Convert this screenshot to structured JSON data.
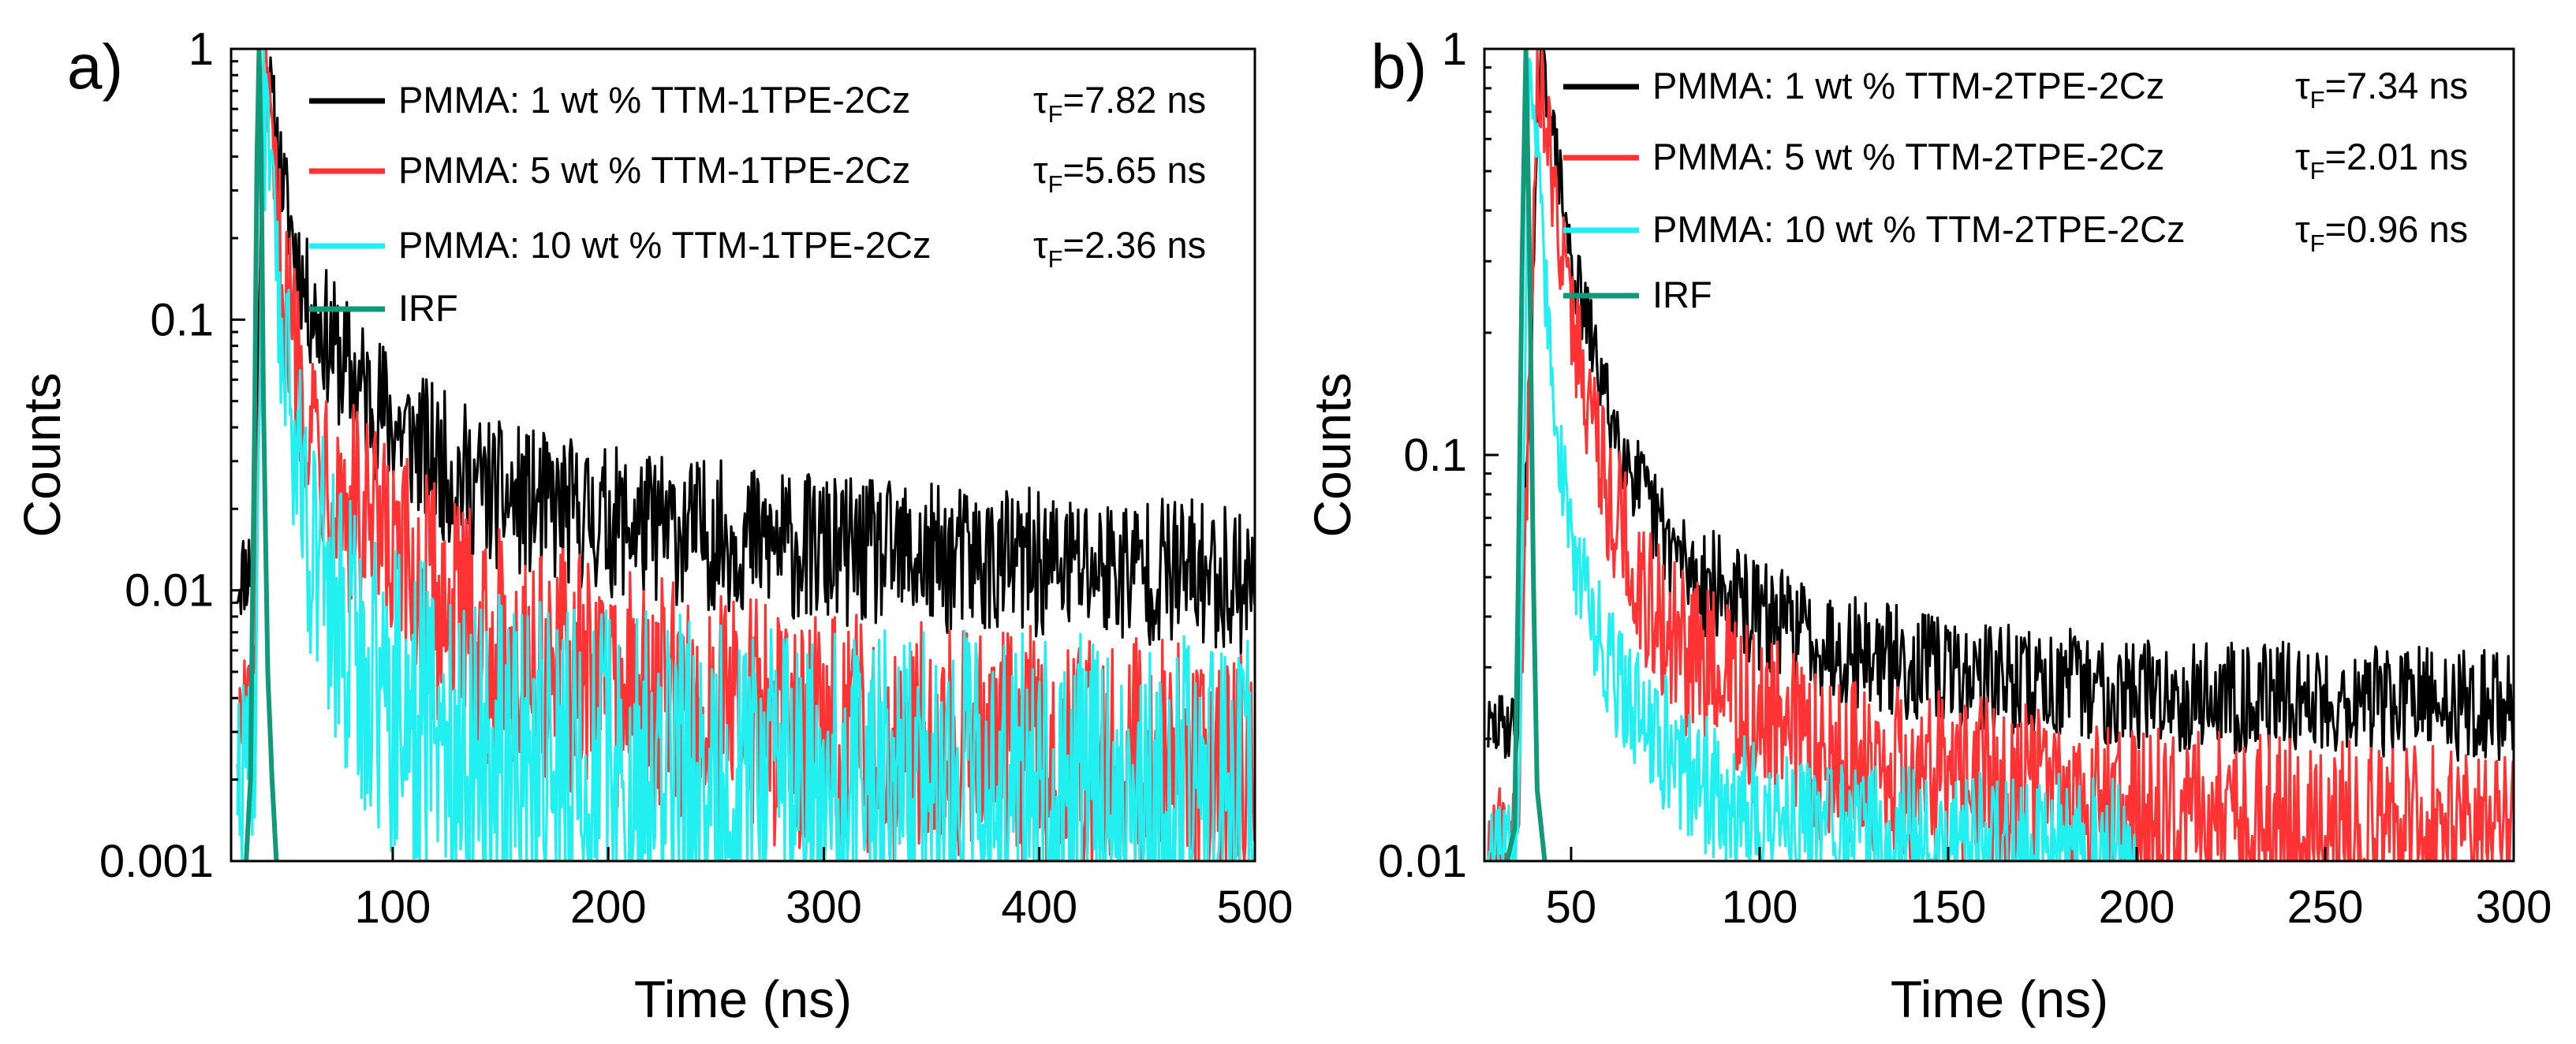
{
  "figure": {
    "panels": [
      {
        "label": "a)",
        "xlabel": "Time (ns)",
        "ylabel": "Counts",
        "xlim": [
          25,
          500
        ],
        "ylim": [
          0.001,
          1
        ],
        "yscale": "log",
        "x_ticks": [
          100,
          200,
          300,
          400,
          500
        ],
        "x_tick_labels": [
          "100",
          "200",
          "300",
          "400",
          "500"
        ],
        "y_ticks": [
          0.001,
          0.01,
          0.1,
          1
        ],
        "y_tick_labels": [
          "0.001",
          "0.01",
          "0.1",
          "1"
        ],
        "legend": [
          {
            "text": "PMMA: 1 wt % TTM-1TPE-2Cz",
            "tau_symbol": "τ",
            "tau_sub": "F",
            "tau_value": "=7.82 ns",
            "color": "#000000"
          },
          {
            "text": "PMMA: 5 wt % TTM-1TPE-2Cz",
            "tau_symbol": "τ",
            "tau_sub": "F",
            "tau_value": "=5.65 ns",
            "color": "#ff3333"
          },
          {
            "text": "PMMA: 10 wt % TTM-1TPE-2Cz",
            "tau_symbol": "τ",
            "tau_sub": "F",
            "tau_value": "=2.36 ns",
            "color": "#22f0f0"
          },
          {
            "text": "IRF",
            "tau_symbol": "",
            "tau_sub": "",
            "tau_value": "",
            "color": "#11997a"
          }
        ]
      },
      {
        "label": "b)",
        "xlabel": "Time (ns)",
        "ylabel": "Counts",
        "xlim": [
          27,
          300
        ],
        "ylim": [
          0.01,
          1
        ],
        "yscale": "log",
        "x_ticks": [
          50,
          100,
          150,
          200,
          250,
          300
        ],
        "x_tick_labels": [
          "50",
          "100",
          "150",
          "200",
          "250",
          "300"
        ],
        "y_ticks": [
          0.01,
          0.1,
          1
        ],
        "y_tick_labels": [
          "0.01",
          "0.1",
          "1"
        ],
        "legend": [
          {
            "text": "PMMA: 1 wt % TTM-2TPE-2Cz",
            "tau_symbol": "τ",
            "tau_sub": "F",
            "tau_value": "=7.34 ns",
            "color": "#000000"
          },
          {
            "text": "PMMA: 5 wt % TTM-2TPE-2Cz",
            "tau_symbol": "τ",
            "tau_sub": "F",
            "tau_value": "=2.01 ns",
            "color": "#ff3333"
          },
          {
            "text": "PMMA: 10 wt % TTM-2TPE-2Cz",
            "tau_symbol": "τ",
            "tau_sub": "F",
            "tau_value": "=0.96 ns",
            "color": "#22f0f0"
          },
          {
            "text": "IRF",
            "tau_symbol": "",
            "tau_sub": "",
            "tau_value": "",
            "color": "#11997a"
          }
        ]
      }
    ]
  },
  "chart_data": [
    {
      "type": "line",
      "title": "a)",
      "xlabel": "Time (ns)",
      "ylabel": "Counts",
      "yscale": "log",
      "xlim": [
        25,
        500
      ],
      "ylim": [
        0.001,
        1
      ],
      "grid": false,
      "legend_position": "top-right",
      "series": [
        {
          "name": "PMMA: 1 wt % TTM-1TPE-2Cz",
          "color": "#000000",
          "peak_x": 40,
          "baseline": 0.011,
          "noise": 0.28,
          "lifetime_ns": 7.82,
          "x": [
            28,
            36,
            40,
            50,
            60,
            70,
            80,
            100,
            120,
            150,
            200,
            250,
            300,
            350,
            400,
            450,
            500
          ],
          "y": [
            0.011,
            0.013,
            1.0,
            0.28,
            0.12,
            0.085,
            0.062,
            0.042,
            0.03,
            0.022,
            0.018,
            0.016,
            0.014,
            0.013,
            0.0125,
            0.012,
            0.011
          ]
        },
        {
          "name": "PMMA: 5 wt % TTM-1TPE-2Cz",
          "color": "#ff3333",
          "peak_x": 40,
          "baseline": 0.0022,
          "noise": 0.45,
          "lifetime_ns": 5.65,
          "x": [
            28,
            36,
            40,
            50,
            60,
            70,
            80,
            100,
            120,
            150,
            200,
            250,
            300,
            350,
            400,
            450,
            500
          ],
          "y": [
            0.003,
            0.004,
            0.8,
            0.12,
            0.05,
            0.03,
            0.02,
            0.012,
            0.009,
            0.006,
            0.0045,
            0.0035,
            0.003,
            0.0028,
            0.0026,
            0.0024,
            0.0022
          ]
        },
        {
          "name": "PMMA: 10 wt % TTM-1TPE-2Cz",
          "color": "#22f0f0",
          "peak_x": 40,
          "baseline": 0.0017,
          "noise": 0.6,
          "lifetime_ns": 2.36,
          "x": [
            28,
            36,
            40,
            50,
            60,
            70,
            80,
            100,
            120,
            150,
            200,
            250,
            300,
            350,
            400,
            450,
            500
          ],
          "y": [
            0.002,
            0.003,
            0.6,
            0.06,
            0.02,
            0.01,
            0.006,
            0.004,
            0.003,
            0.0025,
            0.0022,
            0.002,
            0.0019,
            0.0018,
            0.0018,
            0.0017,
            0.0017
          ]
        },
        {
          "name": "IRF",
          "color": "#11997a",
          "peak_x": 38,
          "baseline": 0.001,
          "noise": 0,
          "lifetime_ns": null,
          "x": [
            32,
            34,
            36,
            37,
            38,
            39,
            40,
            42,
            44,
            46
          ],
          "y": [
            0.001,
            0.002,
            0.05,
            0.4,
            1.0,
            0.4,
            0.05,
            0.005,
            0.002,
            0.001
          ]
        }
      ]
    },
    {
      "type": "line",
      "title": "b)",
      "xlabel": "Time (ns)",
      "ylabel": "Counts",
      "yscale": "log",
      "xlim": [
        27,
        300
      ],
      "ylim": [
        0.01,
        1
      ],
      "grid": false,
      "legend_position": "top-right",
      "series": [
        {
          "name": "PMMA: 1 wt % TTM-2TPE-2Cz",
          "color": "#000000",
          "peak_x": 42,
          "baseline": 0.024,
          "noise": 0.14,
          "lifetime_ns": 7.34,
          "x": [
            28,
            36,
            42,
            50,
            60,
            70,
            80,
            100,
            120,
            150,
            200,
            250,
            300
          ],
          "y": [
            0.021,
            0.022,
            1.0,
            0.3,
            0.13,
            0.075,
            0.053,
            0.04,
            0.034,
            0.029,
            0.026,
            0.025,
            0.024
          ]
        },
        {
          "name": "PMMA: 5 wt % TTM-2TPE-2Cz",
          "color": "#ff3333",
          "peak_x": 41,
          "baseline": 0.0115,
          "noise": 0.22,
          "lifetime_ns": 2.01,
          "x": [
            28,
            36,
            41,
            50,
            60,
            70,
            80,
            100,
            120,
            150,
            200,
            250,
            300
          ],
          "y": [
            0.011,
            0.012,
            0.95,
            0.22,
            0.08,
            0.045,
            0.032,
            0.022,
            0.018,
            0.016,
            0.013,
            0.012,
            0.0115
          ]
        },
        {
          "name": "PMMA: 10 wt % TTM-2TPE-2Cz",
          "color": "#22f0f0",
          "peak_x": 39,
          "baseline": 0.0108,
          "noise": 0.18,
          "lifetime_ns": 0.96,
          "x": [
            28,
            36,
            39,
            45,
            50,
            60,
            70,
            80,
            100,
            120,
            150,
            200
          ],
          "y": [
            0.0105,
            0.011,
            1.0,
            0.15,
            0.06,
            0.03,
            0.022,
            0.017,
            0.013,
            0.012,
            0.011,
            0.0108
          ]
        },
        {
          "name": "IRF",
          "color": "#11997a",
          "peak_x": 38,
          "baseline": 0.01,
          "noise": 0,
          "lifetime_ns": null,
          "x": [
            33,
            35,
            36,
            37,
            38,
            39,
            40,
            41,
            43
          ],
          "y": [
            0.01,
            0.012,
            0.05,
            0.3,
            1.0,
            0.3,
            0.05,
            0.015,
            0.01
          ]
        }
      ]
    }
  ]
}
